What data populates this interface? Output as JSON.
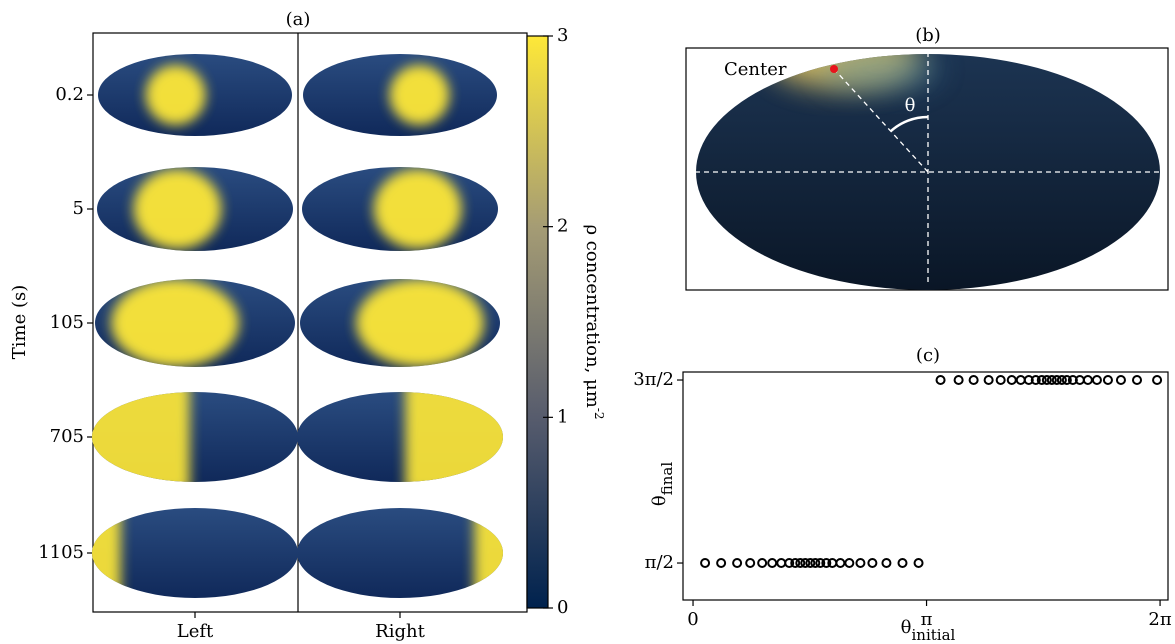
{
  "chart_data": [
    {
      "type": "image-grid",
      "title": "(a)",
      "ylabel": "Time (s)",
      "categories": [
        "0.2",
        "5",
        "105",
        "705",
        "1105"
      ],
      "columns": [
        "Left",
        "Right"
      ],
      "colorbar": {
        "label": "ρ concentration, μm",
        "label_sup": "-2",
        "lim": [
          0,
          3
        ],
        "ticks": [
          0,
          1,
          2,
          3
        ],
        "colors": [
          "#00224e",
          "#575c6d",
          "#a59c74",
          "#fee838"
        ]
      }
    },
    {
      "type": "diagram",
      "title": "(b)",
      "annotations": [
        "Center",
        "θ"
      ]
    },
    {
      "type": "scatter",
      "title": "(c)",
      "xlabel": {
        "text": "θ",
        "sub": "initial"
      },
      "ylabel": {
        "text": "θ",
        "sub": "final"
      },
      "x": [
        0.162,
        0.378,
        0.593,
        0.769,
        0.93,
        1.065,
        1.187,
        1.294,
        1.375,
        1.443,
        1.51,
        1.578,
        1.645,
        1.712,
        1.793,
        1.874,
        1.982,
        2.103,
        2.252,
        2.413,
        2.602,
        2.818,
        3.034,
        3.33,
        3.573,
        3.775,
        3.977,
        4.139,
        4.288,
        4.409,
        4.517,
        4.611,
        4.692,
        4.76,
        4.827,
        4.894,
        4.962,
        5.029,
        5.11,
        5.204,
        5.312,
        5.434,
        5.582,
        5.757,
        5.973,
        6.243
      ],
      "y": [
        1.5708,
        1.5708,
        1.5708,
        1.5708,
        1.5708,
        1.5708,
        1.5708,
        1.5708,
        1.5708,
        1.5708,
        1.5708,
        1.5708,
        1.5708,
        1.5708,
        1.5708,
        1.5708,
        1.5708,
        1.5708,
        1.5708,
        1.5708,
        1.5708,
        1.5708,
        1.5708,
        4.7124,
        4.7124,
        4.7124,
        4.7124,
        4.7124,
        4.7124,
        4.7124,
        4.7124,
        4.7124,
        4.7124,
        4.7124,
        4.7124,
        4.7124,
        4.7124,
        4.7124,
        4.7124,
        4.7124,
        4.7124,
        4.7124,
        4.7124,
        4.7124,
        4.7124,
        4.7124
      ],
      "color": "#000000",
      "xlim": [
        -0.135,
        6.39
      ],
      "ylim": [
        0.936,
        4.85
      ],
      "xticks": [
        0,
        {
          "value": 3.14159,
          "label": "π"
        },
        {
          "value": 6.28319,
          "label": "2π"
        }
      ],
      "yticks": [
        {
          "value": 1.5708,
          "label": "π/2"
        },
        {
          "value": 4.71239,
          "label": "3π/2"
        }
      ]
    }
  ]
}
